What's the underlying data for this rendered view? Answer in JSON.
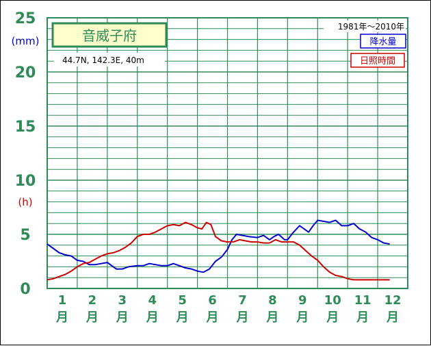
{
  "chart_data": {
    "type": "line",
    "title": "音威子府",
    "location": "44.7N,  142.3E,  40m",
    "period": "1981年〜2010年",
    "units": {
      "precip": "(mm)",
      "sunshine": "(h)"
    },
    "ylim": [
      0,
      25
    ],
    "yticks": [
      "0",
      "5",
      "10",
      "15",
      "20",
      "25"
    ],
    "months": [
      "1",
      "2",
      "3",
      "4",
      "5",
      "6",
      "7",
      "8",
      "9",
      "10",
      "11",
      "12"
    ],
    "month_suffix": "月",
    "x_range": [
      1,
      13
    ],
    "series": [
      {
        "name": "降水量",
        "color": "#0000cc",
        "points": [
          [
            1.0,
            4.1
          ],
          [
            1.2,
            3.7
          ],
          [
            1.4,
            3.3
          ],
          [
            1.6,
            3.1
          ],
          [
            1.8,
            3.0
          ],
          [
            2.0,
            2.6
          ],
          [
            2.2,
            2.5
          ],
          [
            2.4,
            2.2
          ],
          [
            2.6,
            2.2
          ],
          [
            2.8,
            2.3
          ],
          [
            3.0,
            2.4
          ],
          [
            3.15,
            2.1
          ],
          [
            3.3,
            1.8
          ],
          [
            3.5,
            1.8
          ],
          [
            3.7,
            2.0
          ],
          [
            4.0,
            2.1
          ],
          [
            4.2,
            2.1
          ],
          [
            4.4,
            2.3
          ],
          [
            4.6,
            2.2
          ],
          [
            4.8,
            2.1
          ],
          [
            5.0,
            2.1
          ],
          [
            5.2,
            2.3
          ],
          [
            5.4,
            2.1
          ],
          [
            5.6,
            1.9
          ],
          [
            5.8,
            1.8
          ],
          [
            6.0,
            1.6
          ],
          [
            6.2,
            1.5
          ],
          [
            6.4,
            1.8
          ],
          [
            6.6,
            2.5
          ],
          [
            6.8,
            2.9
          ],
          [
            7.0,
            3.6
          ],
          [
            7.15,
            4.5
          ],
          [
            7.3,
            5.0
          ],
          [
            7.5,
            4.9
          ],
          [
            7.7,
            4.8
          ],
          [
            8.0,
            4.7
          ],
          [
            8.2,
            4.9
          ],
          [
            8.4,
            4.5
          ],
          [
            8.55,
            4.8
          ],
          [
            8.7,
            5.0
          ],
          [
            8.9,
            4.5
          ],
          [
            9.0,
            4.5
          ],
          [
            9.2,
            5.2
          ],
          [
            9.4,
            5.8
          ],
          [
            9.55,
            5.5
          ],
          [
            9.7,
            5.2
          ],
          [
            9.85,
            5.8
          ],
          [
            10.0,
            6.3
          ],
          [
            10.2,
            6.2
          ],
          [
            10.4,
            6.1
          ],
          [
            10.6,
            6.3
          ],
          [
            10.8,
            5.8
          ],
          [
            11.0,
            5.8
          ],
          [
            11.2,
            6.0
          ],
          [
            11.4,
            5.5
          ],
          [
            11.6,
            5.2
          ],
          [
            11.8,
            4.7
          ],
          [
            12.0,
            4.5
          ],
          [
            12.2,
            4.2
          ],
          [
            12.4,
            4.1
          ]
        ]
      },
      {
        "name": "日照時間",
        "color": "#cc0000",
        "points": [
          [
            1.0,
            0.8
          ],
          [
            1.2,
            0.9
          ],
          [
            1.4,
            1.1
          ],
          [
            1.6,
            1.3
          ],
          [
            1.8,
            1.6
          ],
          [
            2.0,
            2.0
          ],
          [
            2.2,
            2.3
          ],
          [
            2.4,
            2.4
          ],
          [
            2.6,
            2.7
          ],
          [
            2.8,
            3.0
          ],
          [
            3.0,
            3.2
          ],
          [
            3.2,
            3.3
          ],
          [
            3.4,
            3.5
          ],
          [
            3.6,
            3.8
          ],
          [
            3.8,
            4.2
          ],
          [
            4.0,
            4.8
          ],
          [
            4.2,
            5.0
          ],
          [
            4.4,
            5.0
          ],
          [
            4.6,
            5.2
          ],
          [
            4.8,
            5.5
          ],
          [
            5.0,
            5.8
          ],
          [
            5.2,
            5.9
          ],
          [
            5.4,
            5.8
          ],
          [
            5.6,
            6.1
          ],
          [
            5.8,
            5.9
          ],
          [
            6.0,
            5.6
          ],
          [
            6.15,
            5.5
          ],
          [
            6.3,
            6.1
          ],
          [
            6.45,
            5.9
          ],
          [
            6.6,
            4.8
          ],
          [
            6.8,
            4.4
          ],
          [
            7.0,
            4.3
          ],
          [
            7.2,
            4.3
          ],
          [
            7.4,
            4.5
          ],
          [
            7.6,
            4.4
          ],
          [
            7.8,
            4.3
          ],
          [
            8.0,
            4.3
          ],
          [
            8.2,
            4.2
          ],
          [
            8.4,
            4.2
          ],
          [
            8.6,
            4.5
          ],
          [
            8.8,
            4.3
          ],
          [
            9.0,
            4.3
          ],
          [
            9.2,
            4.3
          ],
          [
            9.4,
            4.0
          ],
          [
            9.6,
            3.5
          ],
          [
            9.8,
            3.0
          ],
          [
            10.0,
            2.6
          ],
          [
            10.2,
            2.0
          ],
          [
            10.4,
            1.5
          ],
          [
            10.6,
            1.2
          ],
          [
            10.8,
            1.1
          ],
          [
            11.0,
            0.9
          ],
          [
            11.2,
            0.8
          ],
          [
            11.4,
            0.8
          ],
          [
            11.6,
            0.8
          ],
          [
            11.8,
            0.8
          ],
          [
            12.0,
            0.8
          ],
          [
            12.2,
            0.8
          ],
          [
            12.4,
            0.8
          ]
        ]
      }
    ],
    "grid": true,
    "legend_position": "top-right"
  },
  "colors": {
    "grid": "#2e8b57",
    "axis_text": "#2e8b57",
    "precip": "#0000cc",
    "sunshine": "#cc0000",
    "title_bg": "#ffffcc"
  }
}
